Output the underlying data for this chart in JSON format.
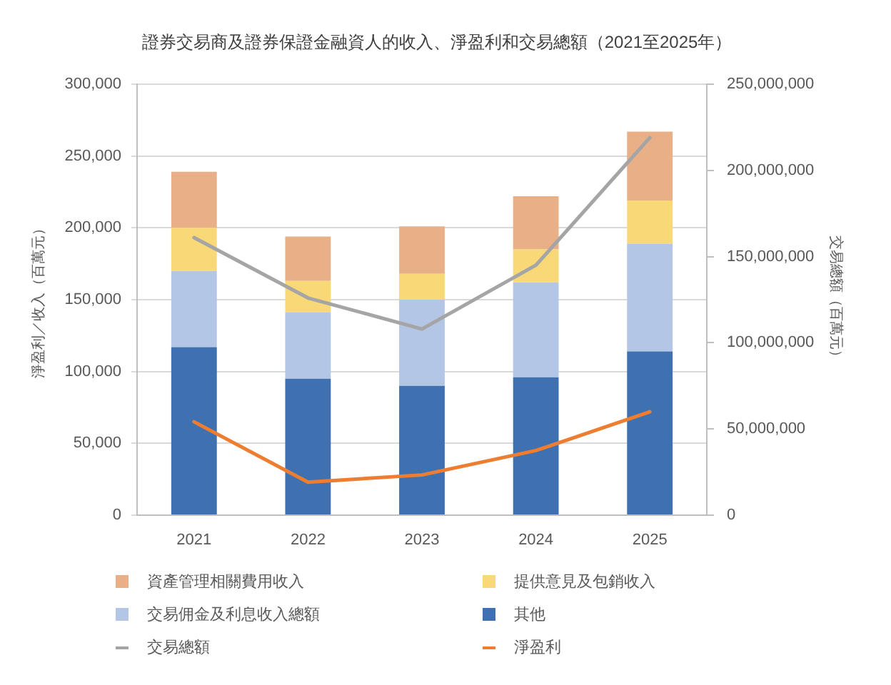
{
  "chart_data": {
    "type": "bar",
    "title": "證券交易商及證券保證金融資人的收入、淨盈利和交易總額（2021至2025年）",
    "ylabel": "淨盈利／收入（百萬元）",
    "y2label": "交易總額（百萬元）",
    "categories": [
      "2021",
      "2022",
      "2023",
      "2024",
      "2025"
    ],
    "stacked": true,
    "series": [
      {
        "name": "其他",
        "color": "#3f71b0",
        "values": [
          117000,
          95000,
          90000,
          96000,
          114000
        ]
      },
      {
        "name": "交易佣金及利息收入總額",
        "color": "#b4c6e6",
        "values": [
          53000,
          46000,
          60000,
          66000,
          75000
        ]
      },
      {
        "name": "提供意見及包銷收入",
        "color": "#f8d877",
        "values": [
          30000,
          22000,
          18000,
          23000,
          30000
        ]
      },
      {
        "name": "資產管理相關費用收入",
        "color": "#e9b088",
        "values": [
          39000,
          31000,
          33000,
          37000,
          48000
        ]
      },
      {
        "type": "line",
        "name": "交易總額",
        "color": "#a5a5a5",
        "axis": "y2",
        "values": [
          161000000,
          126000000,
          108000000,
          145000000,
          219000000
        ]
      },
      {
        "type": "line",
        "name": "淨盈利",
        "color": "#ed7d31",
        "values": [
          65000,
          23000,
          28000,
          45000,
          72000
        ]
      }
    ],
    "ylim": [
      0,
      300000
    ],
    "yticks": [
      0,
      {
        "value": 50000,
        "label": "50,000"
      },
      {
        "value": 100000,
        "label": "100,000"
      },
      {
        "value": 150000,
        "label": "150,000"
      },
      {
        "value": 200000,
        "label": "200,000"
      },
      {
        "value": 250000,
        "label": "250,000"
      },
      {
        "value": 300000,
        "label": "300,000"
      }
    ],
    "y2lim": [
      0,
      250000000
    ],
    "y2ticks": [
      0,
      {
        "value": 50000000,
        "label": "50,000,000"
      },
      {
        "value": 100000000,
        "label": "100,000,000"
      },
      {
        "value": 150000000,
        "label": "150,000,000"
      },
      {
        "value": 200000000,
        "label": "200,000,000"
      },
      {
        "value": 250000000,
        "label": "250,000,000"
      }
    ],
    "grid": "y",
    "legend": "bottom",
    "marker": "none"
  }
}
